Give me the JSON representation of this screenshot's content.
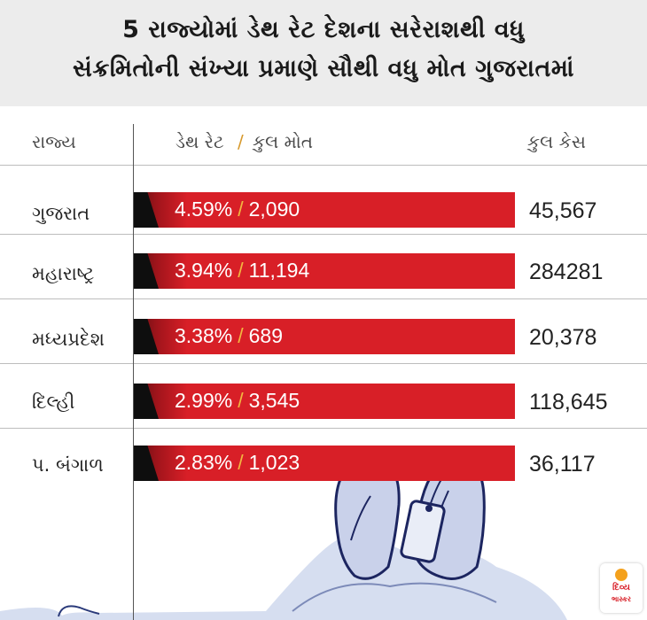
{
  "header": {
    "title_line1": "5 રાજ્યોમાં ડેથ રેટ દેશના સરેરાશથી વધુ",
    "title_line2": "સંક્રમિતોની સંખ્યા પ્રમાણે સૌથી વધુ મોત ગુજરાતમાં"
  },
  "columns": {
    "state": "રાજ્ય",
    "death_rate": "ડેથ રેટ",
    "separator": "/",
    "total_deaths": "કુલ મોત",
    "total_cases": "કુલ કેસ"
  },
  "colors": {
    "bar": "#d81f27",
    "bar_dark": "#5a0f12",
    "separator": "#f2b640",
    "header_bg": "#ececec"
  },
  "chart_data": {
    "type": "table",
    "rows": [
      {
        "state": "ગુજરાત",
        "death_rate": "4.59%",
        "deaths": "2,090",
        "cases": "45,567"
      },
      {
        "state": "મહારાષ્ટ્ર",
        "death_rate": "3.94%",
        "deaths": "11,194",
        "cases": "284281"
      },
      {
        "state": "મધ્યપ્રદેશ",
        "death_rate": "3.38%",
        "deaths": "689",
        "cases": "20,378"
      },
      {
        "state": "દિલ્હી",
        "death_rate": "2.99%",
        "deaths": "3,545",
        "cases": "118,645"
      },
      {
        "state": "પ. બંગાળ",
        "death_rate": "2.83%",
        "deaths": "1,023",
        "cases": "36,117"
      }
    ]
  },
  "logo": {
    "line1": "દિવ્ય",
    "line2": "ભાસ્કર"
  }
}
